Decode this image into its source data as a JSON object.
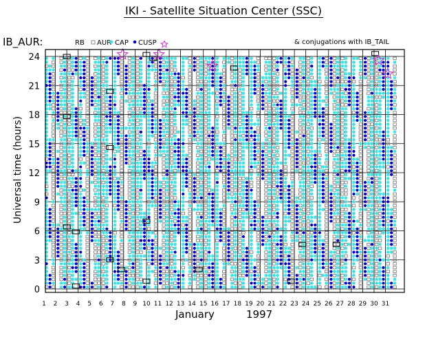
{
  "title": "IKI - Satellite Situation Center (SSC)",
  "chart_data": {
    "type": "scatter",
    "panel_label": "IB_AUR:",
    "legend": {
      "items": [
        {
          "label": "RB",
          "marker": "none"
        },
        {
          "label": "AUR",
          "marker": "open-square"
        },
        {
          "label": "CAP",
          "marker": "cyan-star"
        },
        {
          "label": "CUSP",
          "marker": "blue-dot"
        },
        {
          "label": "",
          "marker": "magenta-open-star"
        }
      ],
      "conjugation_note": "& conjugations with IB_TAIL"
    },
    "ylabel": "Universal time (hours)",
    "xlabel_month": "January",
    "xlabel_year": "1997",
    "ylim": [
      0,
      24
    ],
    "yticks": [
      0,
      3,
      6,
      9,
      12,
      15,
      18,
      21,
      24
    ],
    "xticks": [
      1,
      2,
      3,
      4,
      5,
      6,
      7,
      8,
      9,
      10,
      11,
      12,
      13,
      14,
      15,
      16,
      17,
      18,
      19,
      20,
      21,
      22,
      23,
      24,
      25,
      26,
      27,
      28,
      29,
      30,
      31
    ],
    "xlim": [
      1,
      32
    ],
    "grid": true,
    "colors": {
      "aur": "#808080",
      "cap": "#40e0e0",
      "cusp": "#0000c8",
      "conj": "#cc33cc",
      "rb": "#000000"
    },
    "series": [
      {
        "name": "AUR",
        "pattern": "column of open squares at each pass, 0-24 UT daily"
      },
      {
        "name": "CAP",
        "pattern": "column of cyan stars at each pass, 0-24 UT daily"
      },
      {
        "name": "CUSP",
        "pattern": "clusters of blue dots within each pass"
      },
      {
        "name": "RB",
        "points": [
          [
            3.0,
            24.0
          ],
          [
            3.0,
            17.8
          ],
          [
            3.0,
            6.4
          ],
          [
            3.8,
            5.9
          ],
          [
            3.8,
            0.3
          ],
          [
            6.8,
            20.4
          ],
          [
            6.8,
            14.6
          ],
          [
            6.8,
            3.0
          ],
          [
            7.8,
            2.0
          ],
          [
            10.0,
            24.2
          ],
          [
            10.0,
            7.0
          ],
          [
            10.0,
            0.8
          ],
          [
            10.6,
            23.8
          ],
          [
            14.6,
            2.0
          ],
          [
            17.7,
            22.8
          ],
          [
            22.7,
            0.8
          ],
          [
            23.7,
            4.6
          ],
          [
            26.7,
            4.6
          ],
          [
            30.1,
            24.3
          ]
        ]
      }
    ],
    "conjugations": [
      [
        7.9,
        24.2
      ],
      [
        11.1,
        24.2
      ],
      [
        15.8,
        23.0
      ],
      [
        30.4,
        23.6
      ],
      [
        31.2,
        22.2
      ]
    ]
  }
}
